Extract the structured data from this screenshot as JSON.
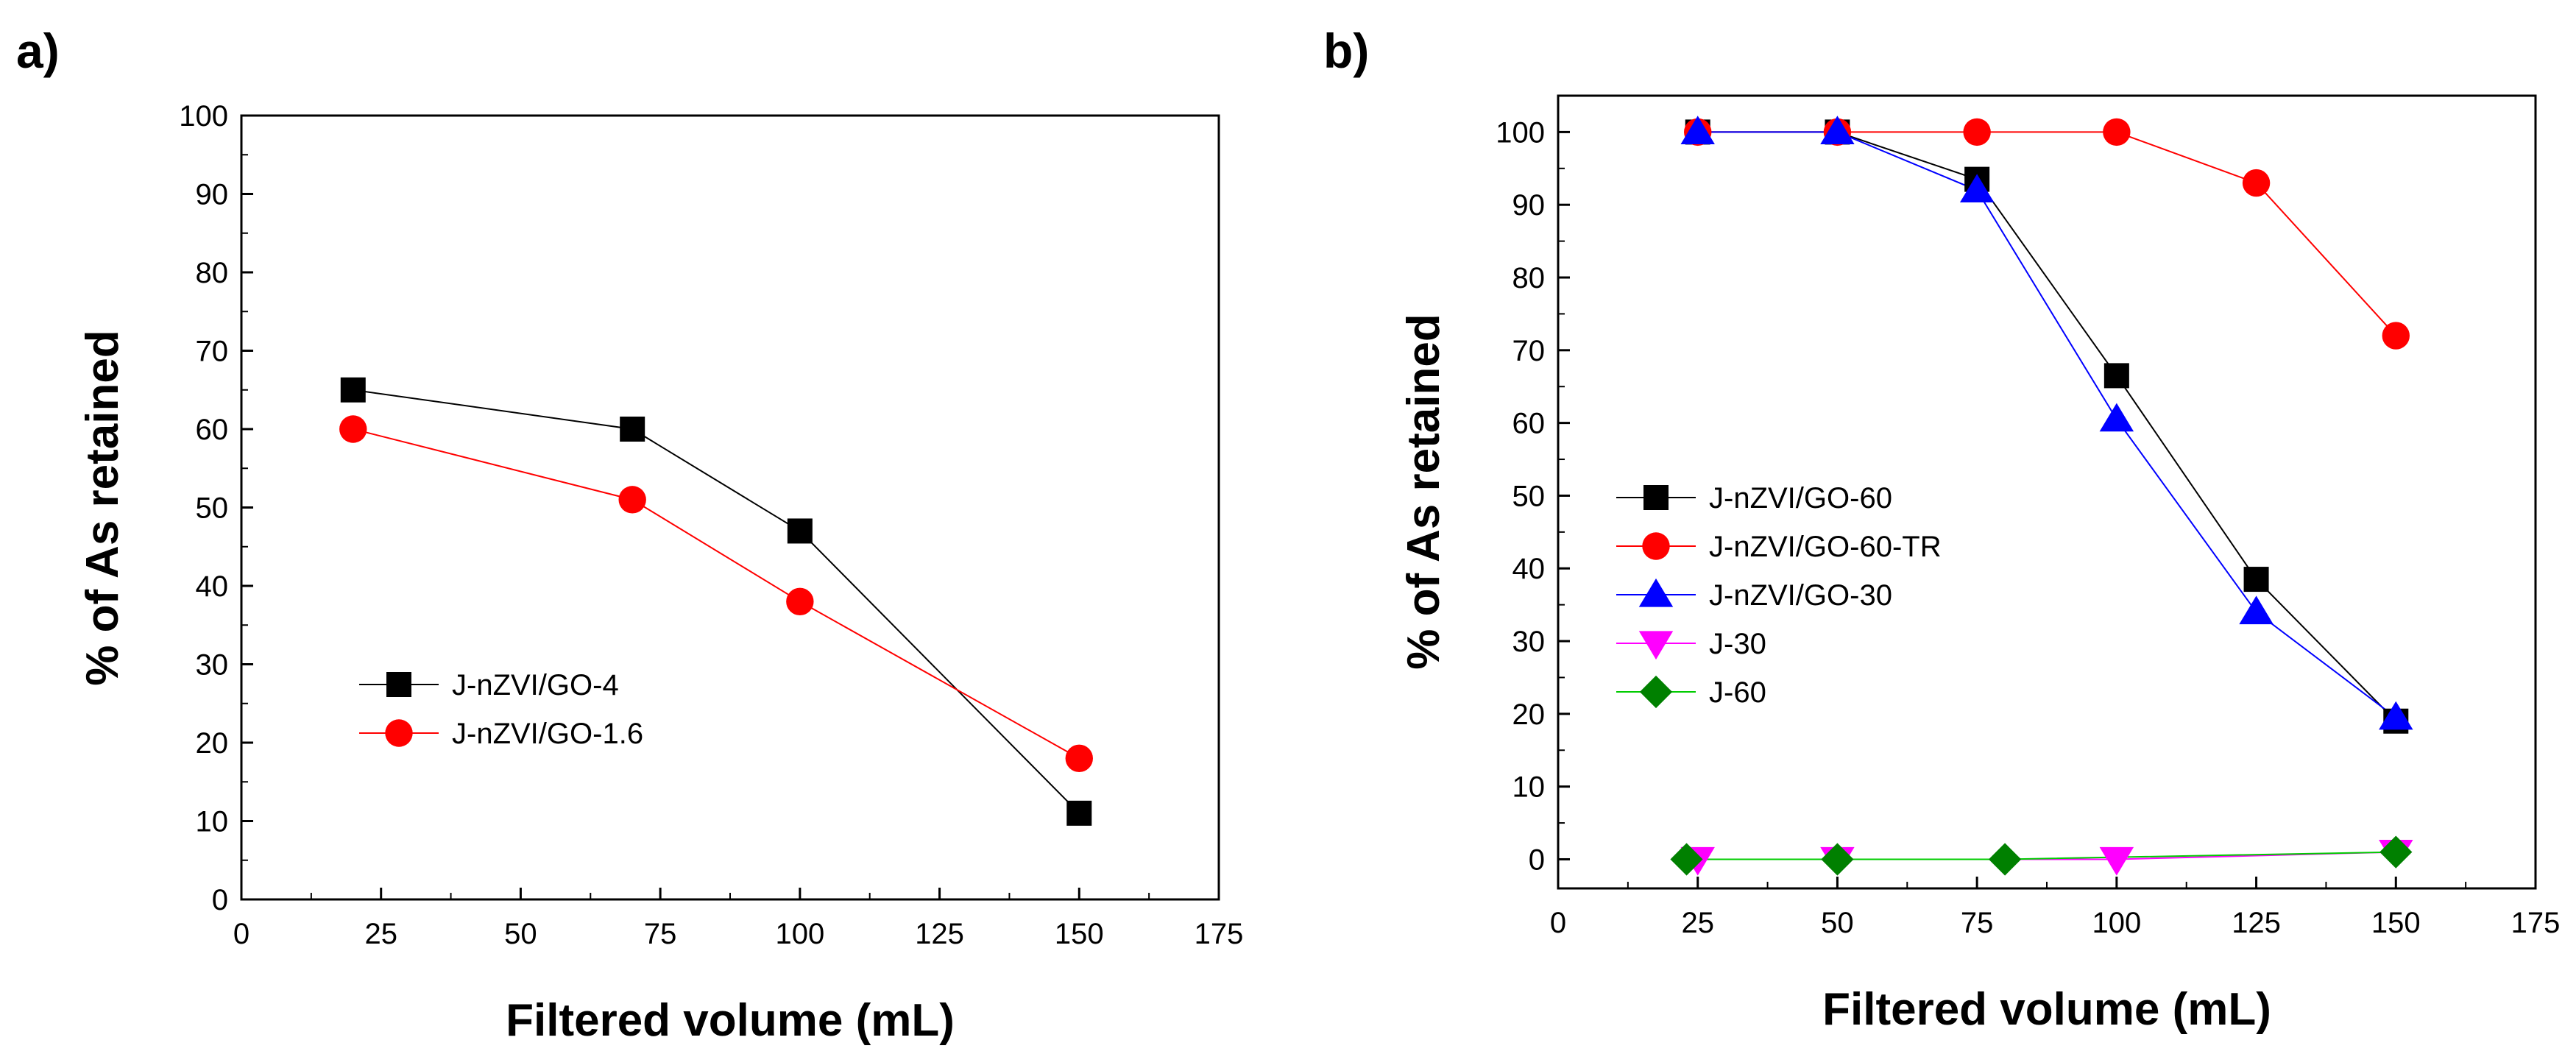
{
  "chart_data": [
    {
      "panel_label": "a)",
      "type": "line",
      "xlabel": "Filtered volume (mL)",
      "ylabel": "% of As retained",
      "xlim": [
        0,
        175
      ],
      "ylim": [
        0,
        100
      ],
      "xticks": [
        0,
        25,
        50,
        75,
        100,
        125,
        150,
        175
      ],
      "yticks": [
        0,
        10,
        20,
        30,
        40,
        50,
        60,
        70,
        80,
        90,
        100
      ],
      "legend_position": "lower-left",
      "series": [
        {
          "name": "J-nZVI/GO-4",
          "marker": "square",
          "color": "#000000",
          "line_color": "#000000",
          "x": [
            20,
            70,
            100,
            150
          ],
          "y": [
            65,
            60,
            47,
            11
          ]
        },
        {
          "name": "J-nZVI/GO-1.6",
          "marker": "circle",
          "color": "#ff0000",
          "line_color": "#ff0000",
          "x": [
            20,
            70,
            100,
            150
          ],
          "y": [
            60,
            51,
            38,
            18
          ]
        }
      ]
    },
    {
      "panel_label": "b)",
      "type": "line",
      "xlabel": "Filtered volume (mL)",
      "ylabel": "% of As retained",
      "xlim": [
        0,
        175
      ],
      "ylim": [
        -4,
        105
      ],
      "xticks": [
        0,
        25,
        50,
        75,
        100,
        125,
        150,
        175
      ],
      "yticks": [
        0,
        10,
        20,
        30,
        40,
        50,
        60,
        70,
        80,
        90,
        100
      ],
      "legend_position": "middle-left",
      "series": [
        {
          "name": "J-nZVI/GO-60",
          "marker": "square",
          "color": "#000000",
          "line_color": "#000000",
          "x": [
            25,
            50,
            75,
            100,
            125,
            150
          ],
          "y": [
            100,
            100,
            93.5,
            66.5,
            38.5,
            19
          ]
        },
        {
          "name": "J-nZVI/GO-60-TR",
          "marker": "circle",
          "color": "#ff0000",
          "line_color": "#ff0000",
          "x": [
            25,
            50,
            75,
            100,
            125,
            150
          ],
          "y": [
            100,
            100,
            100,
            100,
            93,
            72
          ]
        },
        {
          "name": "J-nZVI/GO-30",
          "marker": "triangle-up",
          "color": "#0000ff",
          "line_color": "#0000ff",
          "x": [
            25,
            50,
            75,
            100,
            125,
            150
          ],
          "y": [
            100,
            100,
            92,
            60.5,
            34,
            19.5
          ]
        },
        {
          "name": "J-30",
          "marker": "triangle-down",
          "color": "#ff00ff",
          "line_color": "#ff00ff",
          "x": [
            25,
            50,
            100,
            150
          ],
          "y": [
            0,
            0,
            0,
            1
          ]
        },
        {
          "name": "J-60",
          "marker": "diamond",
          "color": "#008000",
          "line_color": "#00cc00",
          "x": [
            23,
            50,
            80,
            150
          ],
          "y": [
            0,
            0,
            0,
            1
          ]
        }
      ]
    }
  ]
}
